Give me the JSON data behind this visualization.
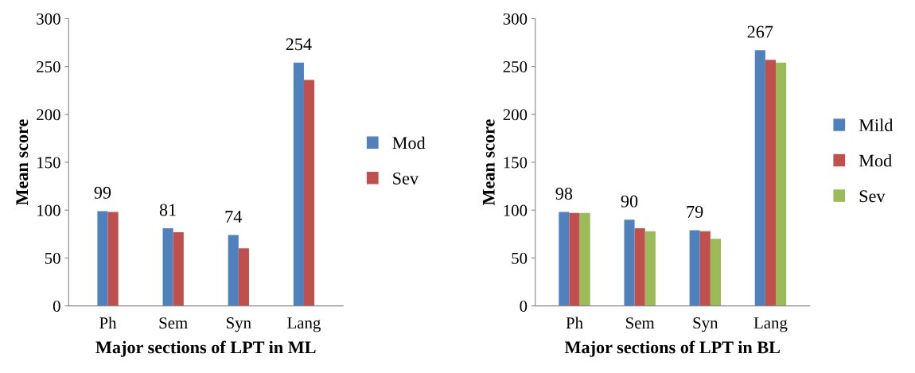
{
  "chart_data": [
    {
      "type": "bar",
      "xlabel": "Major sections of LPT in ML",
      "ylabel": "Mean score",
      "categories": [
        "Ph",
        "Sem",
        "Syn",
        "Lang"
      ],
      "ylim": [
        0,
        300
      ],
      "yticks": [
        0,
        50,
        100,
        150,
        200,
        250,
        300
      ],
      "grid": false,
      "legend": "right",
      "series": [
        {
          "name": "Mod",
          "color": "#4f81bd",
          "values": [
            99,
            81,
            74,
            254
          ],
          "value_labels": [
            "99",
            "81",
            "74",
            "254"
          ]
        },
        {
          "name": "Sev",
          "color": "#c0504d",
          "values": [
            98,
            77,
            60,
            236
          ]
        }
      ]
    },
    {
      "type": "bar",
      "xlabel": "Major sections of LPT in BL",
      "ylabel": "Mean score",
      "categories": [
        "Ph",
        "Sem",
        "Syn",
        "Lang"
      ],
      "ylim": [
        0,
        300
      ],
      "yticks": [
        0,
        50,
        100,
        150,
        200,
        250,
        300
      ],
      "grid": false,
      "legend": "right",
      "series": [
        {
          "name": "Mild",
          "color": "#4f81bd",
          "values": [
            98,
            90,
            79,
            267
          ],
          "value_labels": [
            "98",
            "90",
            "79",
            "267"
          ]
        },
        {
          "name": "Mod",
          "color": "#c0504d",
          "values": [
            97,
            81,
            78,
            257
          ]
        },
        {
          "name": "Sev",
          "color": "#9bbb59",
          "values": [
            97,
            78,
            70,
            254
          ]
        }
      ]
    }
  ]
}
